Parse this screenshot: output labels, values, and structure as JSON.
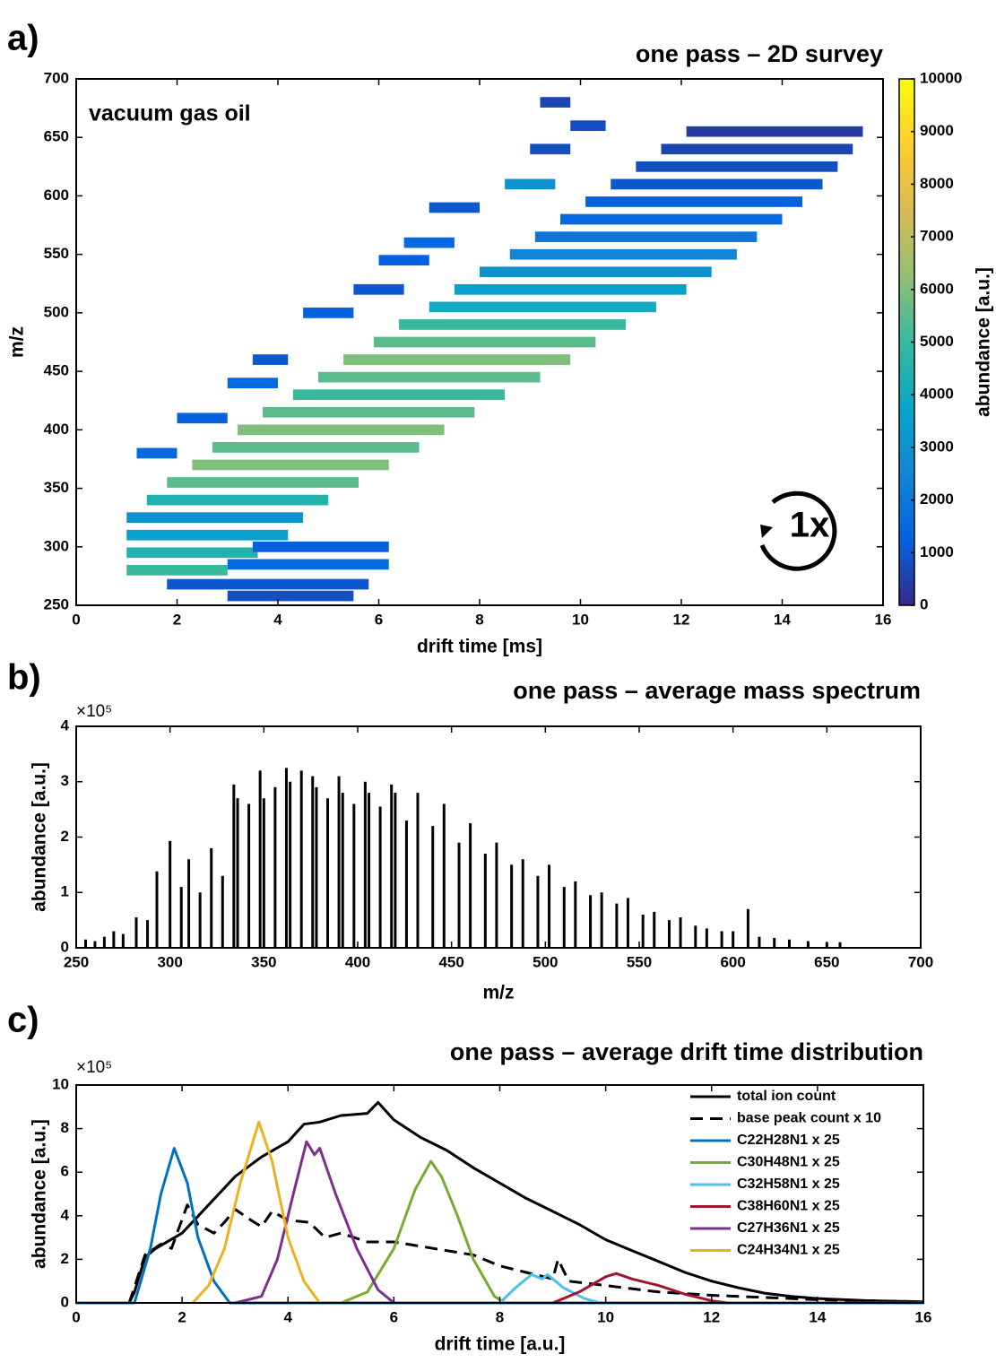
{
  "chart_data": [
    {
      "type": "heatmap",
      "panel_label": "a)",
      "title": "one pass – 2D survey",
      "annotation": "vacuum gas oil",
      "badge": "1x",
      "xlabel": "drift time [ms]",
      "ylabel": "m/z",
      "colorbar_label": "abundance [a.u.]",
      "xlim": [
        0,
        16
      ],
      "xticks": [
        0,
        2,
        4,
        6,
        8,
        10,
        12,
        14,
        16
      ],
      "ylim": [
        250,
        700
      ],
      "yticks": [
        250,
        300,
        350,
        400,
        450,
        500,
        550,
        600,
        650,
        700
      ],
      "clim": [
        0,
        10000
      ],
      "cticks": [
        0,
        1000,
        2000,
        3000,
        4000,
        5000,
        6000,
        7000,
        8000,
        9000,
        10000
      ],
      "colormap": [
        "#352a87",
        "#0363e1",
        "#1485d4",
        "#06a7c6",
        "#38b99e",
        "#92bf73",
        "#d9ba56",
        "#fcce2e",
        "#f9fb0e"
      ],
      "streaks": [
        {
          "mz": 280,
          "t0": 1.0,
          "t1": 3.0,
          "abundance": 5000
        },
        {
          "mz": 295,
          "t0": 1.0,
          "t1": 3.6,
          "abundance": 4500
        },
        {
          "mz": 310,
          "t0": 1.0,
          "t1": 4.2,
          "abundance": 3500
        },
        {
          "mz": 325,
          "t0": 1.0,
          "t1": 4.5,
          "abundance": 3000
        },
        {
          "mz": 340,
          "t0": 1.4,
          "t1": 5.0,
          "abundance": 4500
        },
        {
          "mz": 355,
          "t0": 1.8,
          "t1": 5.6,
          "abundance": 5500
        },
        {
          "mz": 370,
          "t0": 2.3,
          "t1": 6.2,
          "abundance": 6000
        },
        {
          "mz": 385,
          "t0": 2.7,
          "t1": 6.8,
          "abundance": 5500
        },
        {
          "mz": 400,
          "t0": 3.2,
          "t1": 7.3,
          "abundance": 6000
        },
        {
          "mz": 415,
          "t0": 3.7,
          "t1": 7.9,
          "abundance": 5500
        },
        {
          "mz": 430,
          "t0": 4.3,
          "t1": 8.5,
          "abundance": 5000
        },
        {
          "mz": 445,
          "t0": 4.8,
          "t1": 9.2,
          "abundance": 5500
        },
        {
          "mz": 460,
          "t0": 5.3,
          "t1": 9.8,
          "abundance": 6000
        },
        {
          "mz": 475,
          "t0": 5.9,
          "t1": 10.3,
          "abundance": 5500
        },
        {
          "mz": 490,
          "t0": 6.4,
          "t1": 10.9,
          "abundance": 5000
        },
        {
          "mz": 505,
          "t0": 7.0,
          "t1": 11.5,
          "abundance": 4000
        },
        {
          "mz": 520,
          "t0": 7.5,
          "t1": 12.1,
          "abundance": 3500
        },
        {
          "mz": 535,
          "t0": 8.0,
          "t1": 12.6,
          "abundance": 3000
        },
        {
          "mz": 550,
          "t0": 8.6,
          "t1": 13.1,
          "abundance": 2500
        },
        {
          "mz": 565,
          "t0": 9.1,
          "t1": 13.5,
          "abundance": 2000
        },
        {
          "mz": 580,
          "t0": 9.6,
          "t1": 14.0,
          "abundance": 1500
        },
        {
          "mz": 595,
          "t0": 10.1,
          "t1": 14.4,
          "abundance": 1200
        },
        {
          "mz": 610,
          "t0": 10.6,
          "t1": 14.8,
          "abundance": 1000
        },
        {
          "mz": 625,
          "t0": 11.1,
          "t1": 15.1,
          "abundance": 800
        },
        {
          "mz": 640,
          "t0": 11.6,
          "t1": 15.4,
          "abundance": 600
        },
        {
          "mz": 655,
          "t0": 12.1,
          "t1": 15.6,
          "abundance": 400
        },
        {
          "mz": 258,
          "t0": 3.0,
          "t1": 5.5,
          "abundance": 800
        },
        {
          "mz": 268,
          "t0": 1.8,
          "t1": 5.8,
          "abundance": 1000
        },
        {
          "mz": 285,
          "t0": 3.0,
          "t1": 6.2,
          "abundance": 1500
        },
        {
          "mz": 300,
          "t0": 3.5,
          "t1": 6.2,
          "abundance": 1200
        },
        {
          "mz": 380,
          "t0": 1.2,
          "t1": 2.0,
          "abundance": 1500
        },
        {
          "mz": 410,
          "t0": 2.0,
          "t1": 3.0,
          "abundance": 1200
        },
        {
          "mz": 440,
          "t0": 3.0,
          "t1": 4.0,
          "abundance": 1500
        },
        {
          "mz": 460,
          "t0": 3.5,
          "t1": 4.2,
          "abundance": 1000
        },
        {
          "mz": 500,
          "t0": 4.5,
          "t1": 5.5,
          "abundance": 1200
        },
        {
          "mz": 520,
          "t0": 5.5,
          "t1": 6.5,
          "abundance": 1000
        },
        {
          "mz": 545,
          "t0": 6.0,
          "t1": 7.0,
          "abundance": 1200
        },
        {
          "mz": 560,
          "t0": 6.5,
          "t1": 7.5,
          "abundance": 1500
        },
        {
          "mz": 590,
          "t0": 7.0,
          "t1": 8.0,
          "abundance": 1000
        },
        {
          "mz": 610,
          "t0": 8.5,
          "t1": 9.5,
          "abundance": 3000
        },
        {
          "mz": 640,
          "t0": 9.0,
          "t1": 9.8,
          "abundance": 800
        },
        {
          "mz": 660,
          "t0": 9.8,
          "t1": 10.5,
          "abundance": 800
        },
        {
          "mz": 680,
          "t0": 9.2,
          "t1": 9.8,
          "abundance": 600
        }
      ]
    },
    {
      "type": "stem",
      "panel_label": "b)",
      "title": "one pass – average mass spectrum",
      "y_scale_label": "×10⁵",
      "xlabel": "m/z",
      "ylabel": "abundance [a.u.]",
      "color": "#000000",
      "xlim": [
        250,
        700
      ],
      "xticks": [
        250,
        300,
        350,
        400,
        450,
        500,
        550,
        600,
        650,
        700
      ],
      "ylim": [
        0,
        4
      ],
      "yticks": [
        0,
        1,
        2,
        3,
        4
      ],
      "x": [
        255,
        260,
        265,
        270,
        275,
        282,
        288,
        293,
        300,
        306,
        310,
        316,
        322,
        328,
        334,
        336,
        342,
        348,
        350,
        356,
        362,
        364,
        370,
        376,
        378,
        384,
        390,
        392,
        398,
        404,
        406,
        412,
        418,
        420,
        426,
        432,
        440,
        446,
        454,
        460,
        468,
        474,
        482,
        488,
        496,
        502,
        510,
        516,
        524,
        530,
        538,
        544,
        552,
        558,
        566,
        572,
        580,
        586,
        594,
        600,
        608,
        614,
        622,
        630,
        640,
        650,
        657
      ],
      "values": [
        0.15,
        0.12,
        0.2,
        0.3,
        0.25,
        0.55,
        0.5,
        1.38,
        1.93,
        1.1,
        1.6,
        1.0,
        1.8,
        1.3,
        2.95,
        2.7,
        2.6,
        3.2,
        2.7,
        2.9,
        3.25,
        3.0,
        3.2,
        3.1,
        2.9,
        2.7,
        3.1,
        2.8,
        2.6,
        3.0,
        2.8,
        2.55,
        2.95,
        2.8,
        2.3,
        2.8,
        2.2,
        2.6,
        1.9,
        2.25,
        1.7,
        1.9,
        1.5,
        1.6,
        1.3,
        1.5,
        1.1,
        1.2,
        0.95,
        1.0,
        0.8,
        0.9,
        0.6,
        0.65,
        0.5,
        0.55,
        0.4,
        0.35,
        0.3,
        0.3,
        0.7,
        0.2,
        0.18,
        0.15,
        0.12,
        0.1,
        0.1
      ]
    },
    {
      "type": "line",
      "panel_label": "c)",
      "title": "one pass – average drift time distribution",
      "y_scale_label": "×10⁵",
      "xlabel": "drift time [a.u.]",
      "ylabel": "abundance [a.u.]",
      "legend": "upper right",
      "xlim": [
        0,
        16
      ],
      "xticks": [
        0,
        2,
        4,
        6,
        8,
        10,
        12,
        14,
        16
      ],
      "ylim": [
        0,
        10
      ],
      "yticks": [
        0,
        2,
        4,
        6,
        8,
        10
      ],
      "series": [
        {
          "name": "total ion count",
          "color": "#000000",
          "dash": false,
          "x": [
            0,
            1.0,
            1.1,
            1.3,
            1.5,
            2.0,
            2.5,
            3.0,
            3.5,
            4.0,
            4.3,
            4.6,
            5.0,
            5.5,
            5.7,
            6.0,
            6.5,
            7.0,
            7.5,
            8.0,
            8.5,
            9.0,
            9.5,
            10.0,
            10.5,
            11,
            11.5,
            12,
            12.5,
            13,
            13.5,
            14,
            15,
            16
          ],
          "values": [
            0,
            0,
            0.5,
            2.1,
            2.5,
            3.2,
            4.5,
            5.8,
            6.7,
            7.4,
            8.2,
            8.3,
            8.6,
            8.7,
            9.2,
            8.4,
            7.6,
            7.0,
            6.2,
            5.5,
            4.8,
            4.2,
            3.6,
            2.9,
            2.4,
            1.9,
            1.4,
            1.0,
            0.7,
            0.45,
            0.3,
            0.2,
            0.1,
            0.05
          ]
        },
        {
          "name": "base peak count x 10",
          "color": "#000000",
          "dash": true,
          "x": [
            1.0,
            1.3,
            1.6,
            1.8,
            2.1,
            2.3,
            2.6,
            2.8,
            3.0,
            3.3,
            3.5,
            3.7,
            4.0,
            4.4,
            4.7,
            5.0,
            5.5,
            6.0,
            6.5,
            7.0,
            7.5,
            8.0,
            8.5,
            9.0,
            9.1,
            9.3,
            10,
            11,
            12,
            13,
            14,
            15,
            16
          ],
          "values": [
            0,
            2.2,
            2.7,
            2.5,
            4.5,
            3.6,
            3.2,
            3.7,
            4.3,
            3.8,
            3.5,
            4.2,
            3.8,
            3.7,
            3.0,
            3.2,
            2.8,
            2.8,
            2.6,
            2.4,
            2.2,
            1.7,
            1.4,
            1.1,
            2.0,
            1.0,
            0.8,
            0.5,
            0.35,
            0.25,
            0.15,
            0.1,
            0.05
          ]
        },
        {
          "name": "C22H28N1 x 25",
          "color": "#0072bd",
          "dash": false,
          "x": [
            0,
            1.1,
            1.4,
            1.6,
            1.85,
            2.1,
            2.3,
            2.6,
            2.9,
            16
          ],
          "values": [
            0,
            0,
            2.5,
            5.0,
            7.1,
            5.5,
            3.0,
            1.0,
            0,
            0
          ]
        },
        {
          "name": "C30H48N1 x 25",
          "color": "#77ac30",
          "dash": false,
          "x": [
            5.0,
            5.5,
            6.0,
            6.4,
            6.7,
            6.9,
            7.2,
            7.5,
            7.9,
            8.1
          ],
          "values": [
            0,
            0.5,
            2.5,
            5.2,
            6.5,
            5.8,
            4.0,
            2.0,
            0.3,
            0
          ]
        },
        {
          "name": "C32H58N1 x 25",
          "color": "#4dbeee",
          "dash": false,
          "x": [
            8.0,
            8.3,
            8.6,
            8.8,
            8.9,
            9.2,
            9.6,
            9.9
          ],
          "values": [
            0,
            0.7,
            1.3,
            1.1,
            1.3,
            0.7,
            0.2,
            0
          ]
        },
        {
          "name": "C38H60N1 x 25",
          "color": "#a2142f",
          "dash": false,
          "x": [
            9.0,
            9.5,
            10.0,
            10.2,
            10.5,
            11.0,
            11.5,
            12.0,
            12.3
          ],
          "values": [
            0,
            0.5,
            1.2,
            1.35,
            1.1,
            0.8,
            0.4,
            0.1,
            0
          ]
        },
        {
          "name": "C27H36N1 x 25",
          "color": "#7e2f8e",
          "dash": false,
          "x": [
            3.0,
            3.5,
            3.8,
            4.1,
            4.35,
            4.5,
            4.6,
            4.9,
            5.3,
            5.7,
            6.0
          ],
          "values": [
            0,
            0.3,
            2.0,
            5.0,
            7.4,
            6.8,
            7.1,
            5.0,
            2.5,
            0.6,
            0
          ]
        },
        {
          "name": "C24H34N1 x 25",
          "color": "#edb120",
          "dash": false,
          "x": [
            2.2,
            2.5,
            2.8,
            3.1,
            3.45,
            3.7,
            4.0,
            4.3,
            4.6
          ],
          "values": [
            0,
            0.8,
            2.5,
            5.5,
            8.3,
            6.5,
            3.0,
            1.0,
            0
          ]
        }
      ]
    }
  ]
}
